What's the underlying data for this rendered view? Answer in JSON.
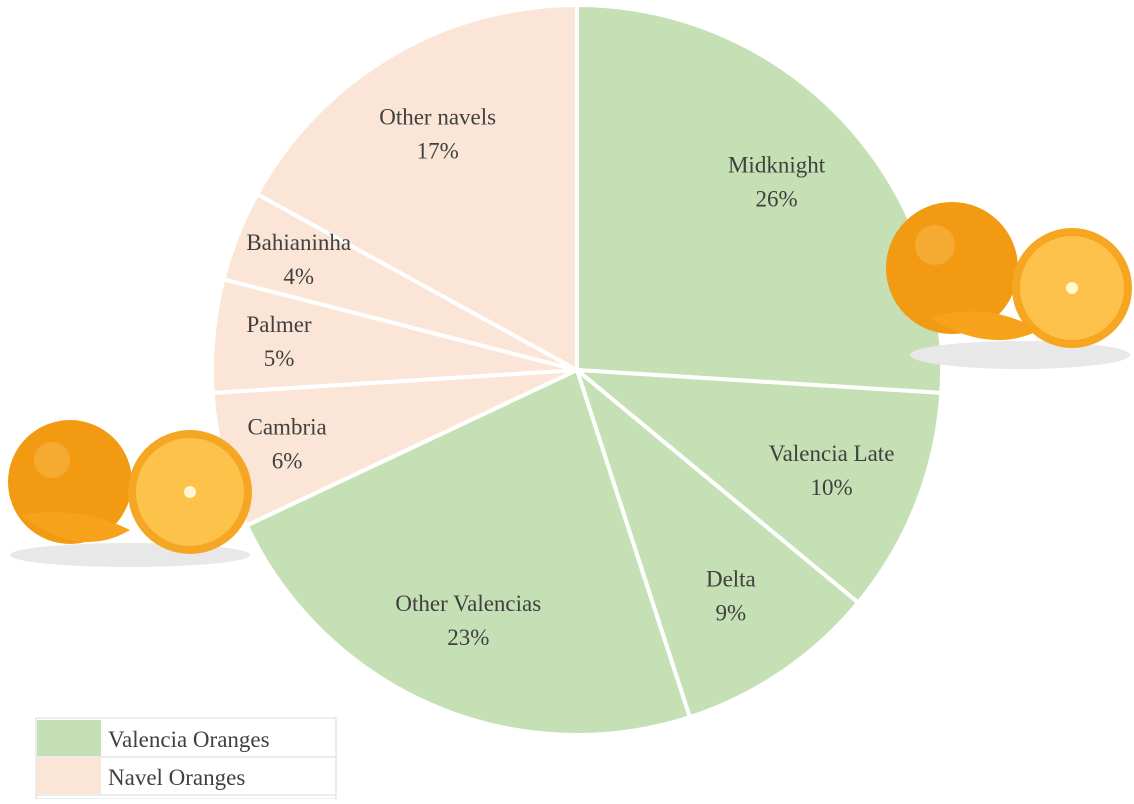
{
  "chart_data": {
    "type": "pie",
    "series": [
      {
        "name": "Valencia Oranges",
        "color": "#c5e0b4",
        "categories": [
          "Midknight",
          "Valencia Late",
          "Delta",
          "Other Valencias"
        ],
        "values": [
          26,
          10,
          9,
          23
        ],
        "value_labels": [
          "26%",
          "10%",
          "9%",
          "23%"
        ]
      },
      {
        "name": "Navel Oranges",
        "color": "#fbe5d6",
        "categories": [
          "Cambria",
          "Palmer",
          "Bahianinha",
          "Other navels"
        ],
        "values": [
          6,
          5,
          4,
          17
        ],
        "value_labels": [
          "6%",
          "5%",
          "4%",
          "17%"
        ]
      }
    ],
    "legend": "bottom-left"
  }
}
